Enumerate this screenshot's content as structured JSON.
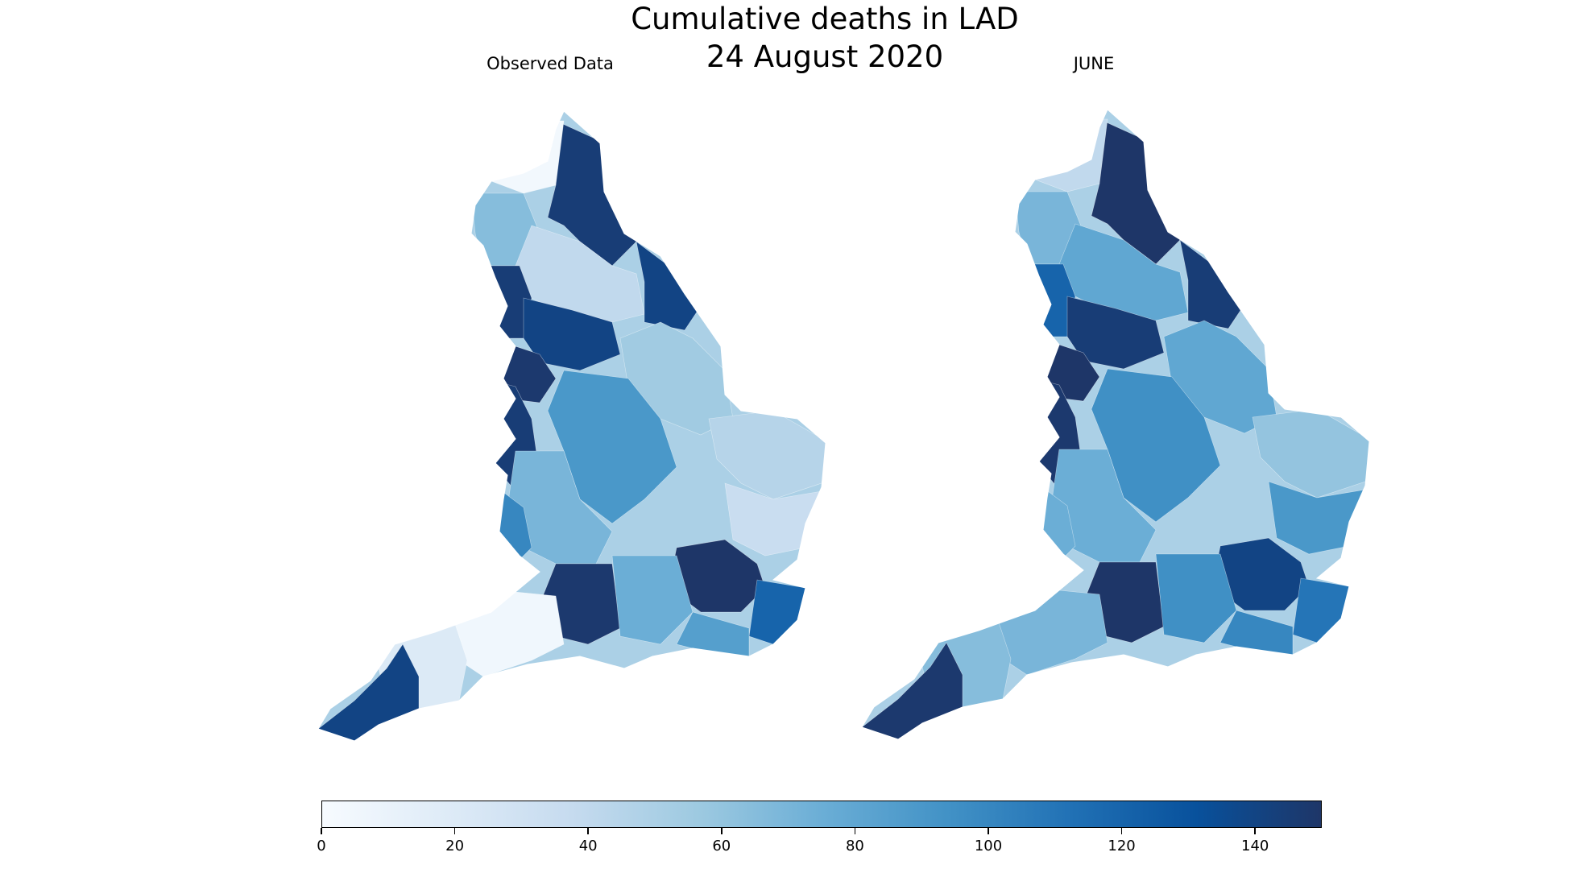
{
  "figure": {
    "title_line1": "Cumulative deaths in LAD",
    "title_line2": "24 August 2020"
  },
  "panels": [
    {
      "title": "Observed Data"
    },
    {
      "title": "JUNE"
    }
  ],
  "colorbar": {
    "colormap": "Blues",
    "min": 0,
    "max": 150,
    "ticks": [
      "0",
      "20",
      "40",
      "60",
      "80",
      "100",
      "120",
      "140"
    ],
    "color_stops": [
      "#f7fbff",
      "#deebf7",
      "#c6dbef",
      "#9ecae1",
      "#6baed6",
      "#4292c6",
      "#2171b5",
      "#08519c",
      "#1e3668"
    ]
  },
  "regions": {
    "observed": {
      "north_east": 145,
      "cumbria_north": 4,
      "cumbria_west": 65,
      "north_yorkshire": 40,
      "east_yorkshire": 140,
      "lancashire": 145,
      "west_yorkshire": 140,
      "greater_manchester": 148,
      "lincolnshire": 55,
      "cheshire_merseyside": 145,
      "east_midlands": 90,
      "west_midlands": 70,
      "norfolk": 45,
      "suffolk": 35,
      "wales_border": 100,
      "london": 150,
      "kent": 120,
      "hampshire": 148,
      "south_central": 75,
      "somerset": 5,
      "devon": 20,
      "cornwall": 140,
      "sussex": 85
    },
    "june": {
      "north_east": 150,
      "cumbria_north": 40,
      "cumbria_west": 70,
      "north_yorkshire": 80,
      "east_yorkshire": 145,
      "lancashire": 120,
      "west_yorkshire": 145,
      "greater_manchester": 150,
      "lincolnshire": 80,
      "cheshire_merseyside": 148,
      "east_midlands": 95,
      "west_midlands": 75,
      "norfolk": 60,
      "suffolk": 90,
      "wales_border": 75,
      "london": 140,
      "kent": 110,
      "hampshire": 150,
      "south_central": 95,
      "somerset": 70,
      "devon": 65,
      "cornwall": 148,
      "sussex": 100
    }
  }
}
